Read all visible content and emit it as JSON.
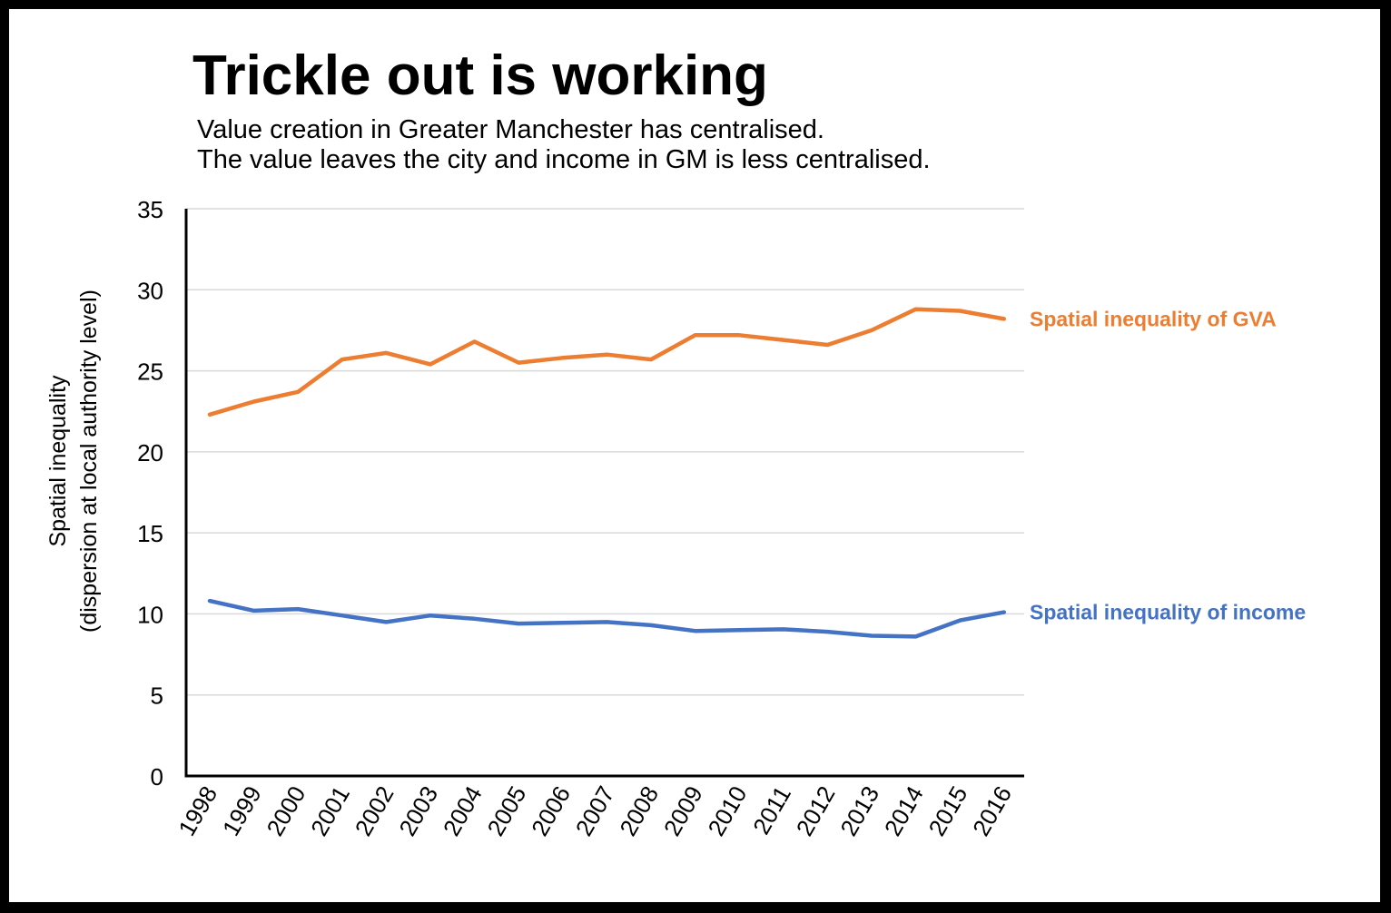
{
  "page": {
    "title": "Trickle out is working",
    "subtitle_lines": [
      "Value creation in Greater Manchester has centralised.",
      "The value leaves the city and income in GM is less centralised."
    ]
  },
  "colors": {
    "background": "#ffffff",
    "frame": "#000000",
    "gva": "#ED7D31",
    "income": "#4472C4",
    "grid": "#d9d9d9",
    "axis": "#000000"
  },
  "chart_data": {
    "type": "line",
    "title": "Trickle out is working",
    "ylabel_lines": [
      "Spatial inequality",
      "(dispersion at local authority level)"
    ],
    "xlabel": "",
    "ylim": [
      0,
      35
    ],
    "yticks": [
      0,
      5,
      10,
      15,
      20,
      25,
      30,
      35
    ],
    "grid": true,
    "legend": "direct labels at line ends",
    "x": [
      "1998",
      "1999",
      "2000",
      "2001",
      "2002",
      "2003",
      "2004",
      "2005",
      "2006",
      "2007",
      "2008",
      "2009",
      "2010",
      "2011",
      "2012",
      "2013",
      "2014",
      "2015",
      "2016"
    ],
    "series": [
      {
        "name": "Spatial inequality of GVA",
        "color": "#ED7D31",
        "values": [
          22.3,
          23.1,
          23.7,
          25.7,
          26.1,
          25.4,
          26.8,
          25.5,
          25.8,
          26.0,
          25.7,
          27.2,
          27.2,
          26.9,
          26.6,
          27.5,
          28.8,
          28.7,
          28.2
        ]
      },
      {
        "name": "Spatial inequality of income",
        "color": "#4472C4",
        "values": [
          10.8,
          10.2,
          10.3,
          9.9,
          9.5,
          9.9,
          9.7,
          9.4,
          9.45,
          9.5,
          9.3,
          8.95,
          9.0,
          9.05,
          8.9,
          8.65,
          8.6,
          9.6,
          10.1
        ]
      }
    ]
  }
}
